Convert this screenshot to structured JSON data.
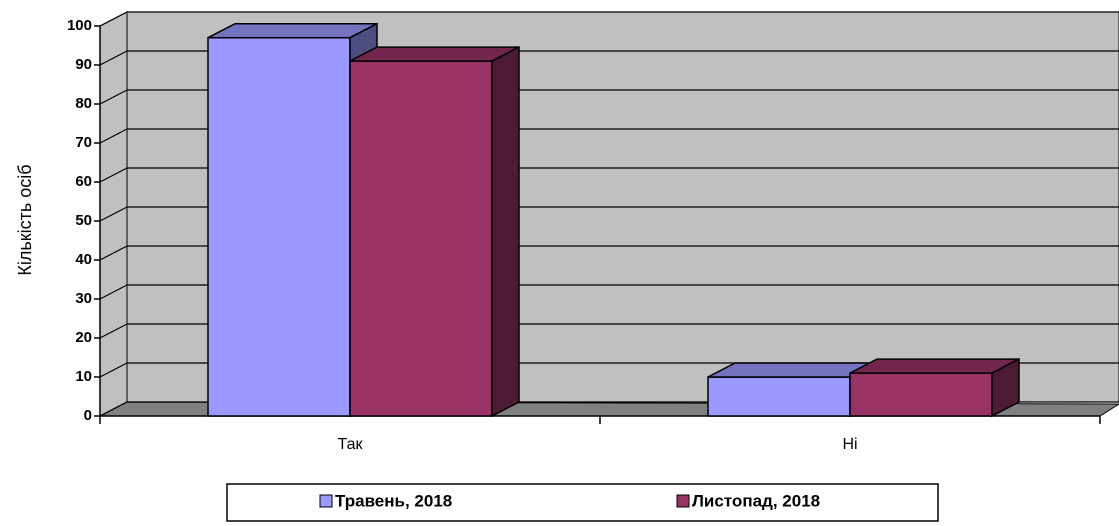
{
  "chart_data": {
    "type": "bar3d",
    "y_label": "Кількість осіб",
    "categories": [
      "Так",
      "Ні"
    ],
    "series": [
      {
        "name": "Травень, 2018",
        "color": "#9999ff",
        "values": [
          97,
          10
        ]
      },
      {
        "name": "Листопад, 2018",
        "color": "#993366",
        "values": [
          91,
          11
        ]
      }
    ],
    "ylim": [
      0,
      100
    ],
    "yticks": [
      0,
      10,
      20,
      30,
      40,
      50,
      60,
      70,
      80,
      90,
      100
    ],
    "grid": true,
    "legend": "bottom"
  }
}
